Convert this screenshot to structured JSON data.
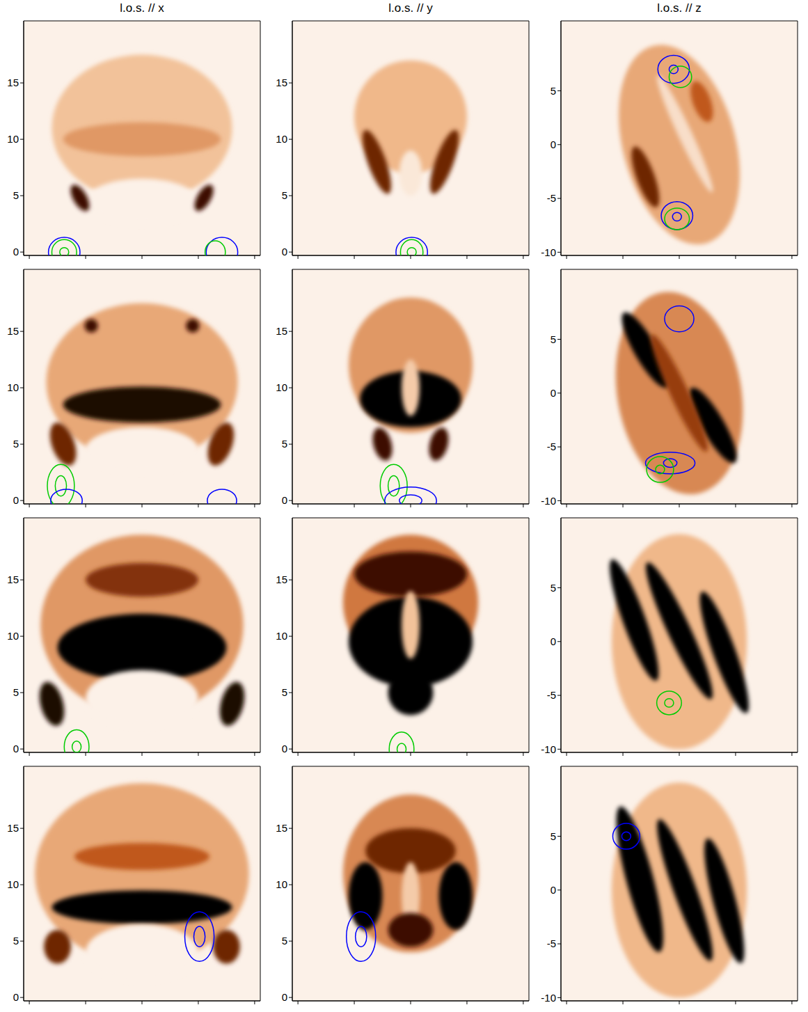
{
  "chart_data": [
    {
      "type": "image",
      "title": "l.o.s. // x",
      "xlim": [
        -10.5,
        10.5
      ],
      "ylim": [
        -0.3,
        20.5
      ],
      "xticks": [
        -10,
        -5,
        0,
        5,
        10
      ],
      "yticks": [
        0,
        5,
        10,
        15
      ],
      "tick_labels": "y",
      "features": [
        {
          "x": 0,
          "y": 11,
          "rx": 8,
          "ry": 6.5,
          "angle": 0,
          "intensity": 0.25
        },
        {
          "x": 0,
          "y": 10,
          "rx": 7,
          "ry": 1.5,
          "angle": 0,
          "intensity": 0.4
        },
        {
          "x": 0,
          "y": 4.5,
          "rx": 5,
          "ry": 2,
          "angle": 0,
          "intensity": 0
        },
        {
          "x": -5.5,
          "y": 4.8,
          "rx": 0.6,
          "ry": 1.3,
          "angle": 30,
          "intensity": 0.9
        },
        {
          "x": 5.5,
          "y": 4.8,
          "rx": 0.6,
          "ry": 1.3,
          "angle": -30,
          "intensity": 0.9
        }
      ],
      "contours": [
        {
          "x": -6.9,
          "y": 0,
          "rx": 1.4,
          "ry": 1.3,
          "color": "#0000ff"
        },
        {
          "x": -6.9,
          "y": 0,
          "rx": 1.1,
          "ry": 1.1,
          "color": "#00cc00"
        },
        {
          "x": -6.9,
          "y": 0,
          "rx": 0.4,
          "ry": 0.4,
          "color": "#00cc00"
        },
        {
          "x": 7.1,
          "y": 0,
          "rx": 1.4,
          "ry": 1.3,
          "color": "#0000ff"
        },
        {
          "x": 6.5,
          "y": 0,
          "rx": 0.9,
          "ry": 1.0,
          "color": "#00cc00"
        }
      ]
    },
    {
      "type": "image",
      "title": "l.o.s. // y",
      "xlim": [
        -10.5,
        10.5
      ],
      "ylim": [
        -0.3,
        20.5
      ],
      "xticks": [
        -10,
        -5,
        0,
        5,
        10
      ],
      "yticks": [
        0,
        5,
        10,
        15
      ],
      "tick_labels": "y",
      "features": [
        {
          "x": 0,
          "y": 12,
          "rx": 5,
          "ry": 5,
          "angle": 0,
          "intensity": 0.3
        },
        {
          "x": -3,
          "y": 8,
          "rx": 0.8,
          "ry": 3,
          "angle": 20,
          "intensity": 0.8
        },
        {
          "x": 3,
          "y": 8,
          "rx": 0.8,
          "ry": 3,
          "angle": -20,
          "intensity": 0.8
        },
        {
          "x": 0,
          "y": 7,
          "rx": 1,
          "ry": 2,
          "angle": 0,
          "intensity": 0.05
        }
      ],
      "contours": [
        {
          "x": 0.1,
          "y": 0,
          "rx": 1.4,
          "ry": 1.3,
          "color": "#0000ff"
        },
        {
          "x": 0.1,
          "y": 0,
          "rx": 1.0,
          "ry": 1.1,
          "color": "#00cc00"
        },
        {
          "x": 0.1,
          "y": 0,
          "rx": 0.4,
          "ry": 0.4,
          "color": "#00cc00"
        }
      ]
    },
    {
      "type": "image",
      "title": "l.o.s. // z",
      "xlim": [
        -10.5,
        10.5
      ],
      "ylim": [
        -10.3,
        11.5
      ],
      "xticks": [
        -10,
        -5,
        0,
        5,
        10
      ],
      "yticks": [
        -10,
        -5,
        0,
        5
      ],
      "tick_labels": "y",
      "features": [
        {
          "x": 0,
          "y": 0,
          "rx": 5,
          "ry": 9.5,
          "angle": 15,
          "intensity": 0.35
        },
        {
          "x": -3,
          "y": -3,
          "rx": 0.8,
          "ry": 3,
          "angle": 20,
          "intensity": 0.8
        },
        {
          "x": 2,
          "y": 4,
          "rx": 0.8,
          "ry": 2,
          "angle": 20,
          "intensity": 0.6
        },
        {
          "x": 0.5,
          "y": 1,
          "rx": 0.6,
          "ry": 6,
          "angle": 25,
          "intensity": 0.1
        }
      ],
      "contours": [
        {
          "x": -0.5,
          "y": 7,
          "rx": 1.4,
          "ry": 1.3,
          "color": "#0000ff"
        },
        {
          "x": -0.5,
          "y": 7,
          "rx": 0.4,
          "ry": 0.4,
          "color": "#0000ff"
        },
        {
          "x": 0.1,
          "y": 6.3,
          "rx": 1.0,
          "ry": 1.0,
          "color": "#00cc00"
        },
        {
          "x": -0.2,
          "y": -6.6,
          "rx": 1.4,
          "ry": 1.3,
          "color": "#0000ff"
        },
        {
          "x": -0.2,
          "y": -6.9,
          "rx": 1.1,
          "ry": 1.0,
          "color": "#00cc00"
        },
        {
          "x": -0.2,
          "y": -6.7,
          "rx": 0.4,
          "ry": 0.4,
          "color": "#0000ff"
        }
      ]
    },
    {
      "type": "image",
      "xlim": [
        -10.5,
        10.5
      ],
      "ylim": [
        -0.3,
        20.5
      ],
      "xticks": [
        -10,
        -5,
        0,
        5,
        10
      ],
      "yticks": [
        0,
        5,
        10,
        15
      ],
      "tick_labels": "y",
      "features": [
        {
          "x": 0,
          "y": 10.5,
          "rx": 8.5,
          "ry": 7,
          "angle": 0,
          "intensity": 0.35
        },
        {
          "x": 0,
          "y": 8.5,
          "rx": 7,
          "ry": 1.6,
          "angle": 0,
          "intensity": 0.95
        },
        {
          "x": 0,
          "y": 4.5,
          "rx": 5,
          "ry": 2,
          "angle": 0,
          "intensity": 0
        },
        {
          "x": -7,
          "y": 5,
          "rx": 1,
          "ry": 2,
          "angle": 20,
          "intensity": 0.8
        },
        {
          "x": 7,
          "y": 5,
          "rx": 1,
          "ry": 2,
          "angle": -20,
          "intensity": 0.8
        },
        {
          "x": -4.5,
          "y": 15.5,
          "rx": 0.6,
          "ry": 0.6,
          "angle": 0,
          "intensity": 0.9
        },
        {
          "x": 4.5,
          "y": 15.5,
          "rx": 0.6,
          "ry": 0.6,
          "angle": 0,
          "intensity": 0.9
        }
      ],
      "contours": [
        {
          "x": -7.2,
          "y": 1.3,
          "rx": 1.2,
          "ry": 1.9,
          "color": "#00cc00"
        },
        {
          "x": -7.2,
          "y": 1.3,
          "rx": 0.5,
          "ry": 0.9,
          "color": "#00cc00"
        },
        {
          "x": -6.7,
          "y": 0,
          "rx": 1.4,
          "ry": 1.0,
          "color": "#0000ff"
        },
        {
          "x": 7.1,
          "y": 0,
          "rx": 1.3,
          "ry": 1.0,
          "color": "#0000ff"
        }
      ]
    },
    {
      "type": "image",
      "xlim": [
        -10.5,
        10.5
      ],
      "ylim": [
        -0.3,
        20.5
      ],
      "xticks": [
        -10,
        -5,
        0,
        5,
        10
      ],
      "yticks": [
        0,
        5,
        10,
        15
      ],
      "tick_labels": "y",
      "features": [
        {
          "x": 0,
          "y": 12,
          "rx": 5.5,
          "ry": 6,
          "angle": 0,
          "intensity": 0.4
        },
        {
          "x": 0,
          "y": 9,
          "rx": 4.5,
          "ry": 2.5,
          "angle": 0,
          "intensity": 1
        },
        {
          "x": 0,
          "y": 10,
          "rx": 0.8,
          "ry": 2.5,
          "angle": 0,
          "intensity": 0.2
        },
        {
          "x": -2.5,
          "y": 5,
          "rx": 0.8,
          "ry": 1.5,
          "angle": 15,
          "intensity": 0.9
        },
        {
          "x": 2.5,
          "y": 5,
          "rx": 0.8,
          "ry": 1.5,
          "angle": -15,
          "intensity": 0.9
        }
      ],
      "contours": [
        {
          "x": -1.5,
          "y": 1.3,
          "rx": 1.2,
          "ry": 1.9,
          "color": "#00cc00"
        },
        {
          "x": -1.5,
          "y": 1.3,
          "rx": 0.5,
          "ry": 0.9,
          "color": "#00cc00"
        },
        {
          "x": 0,
          "y": 0,
          "rx": 2.3,
          "ry": 1.2,
          "color": "#0000ff"
        },
        {
          "x": 0,
          "y": 0,
          "rx": 1.0,
          "ry": 0.5,
          "color": "#0000ff"
        }
      ]
    },
    {
      "type": "image",
      "xlim": [
        -10.5,
        10.5
      ],
      "ylim": [
        -10.3,
        11.5
      ],
      "xticks": [
        -10,
        -5,
        0,
        5,
        10
      ],
      "yticks": [
        -10,
        -5,
        0,
        5
      ],
      "tick_labels": "y",
      "features": [
        {
          "x": 0,
          "y": 0,
          "rx": 5.5,
          "ry": 9.5,
          "angle": 10,
          "intensity": 0.45
        },
        {
          "x": -3,
          "y": 4,
          "rx": 1,
          "ry": 4,
          "angle": 30,
          "intensity": 1
        },
        {
          "x": 3,
          "y": -3,
          "rx": 1,
          "ry": 4,
          "angle": 30,
          "intensity": 1
        },
        {
          "x": 0,
          "y": 0,
          "rx": 0.8,
          "ry": 6,
          "angle": 25,
          "intensity": 0.7
        }
      ],
      "contours": [
        {
          "x": 0,
          "y": 6.9,
          "rx": 1.3,
          "ry": 1.2,
          "color": "#0000ff"
        },
        {
          "x": -0.8,
          "y": -6.5,
          "rx": 2.2,
          "ry": 1.0,
          "color": "#0000ff"
        },
        {
          "x": -0.8,
          "y": -6.5,
          "rx": 0.6,
          "ry": 0.4,
          "color": "#0000ff"
        },
        {
          "x": -1.7,
          "y": -7.1,
          "rx": 1.2,
          "ry": 1.2,
          "color": "#00cc00"
        },
        {
          "x": -1.7,
          "y": -7.1,
          "rx": 0.4,
          "ry": 0.4,
          "color": "#00cc00"
        }
      ]
    },
    {
      "type": "image",
      "xlim": [
        -10.5,
        10.5
      ],
      "ylim": [
        -0.3,
        20.5
      ],
      "xticks": [
        -10,
        -5,
        0,
        5,
        10
      ],
      "yticks": [
        0,
        5,
        10,
        15
      ],
      "tick_labels": "y",
      "features": [
        {
          "x": 0,
          "y": 11,
          "rx": 9,
          "ry": 8,
          "angle": 0,
          "intensity": 0.4
        },
        {
          "x": 0,
          "y": 9,
          "rx": 7.5,
          "ry": 3,
          "angle": 0,
          "intensity": 1
        },
        {
          "x": 0,
          "y": 15,
          "rx": 5,
          "ry": 1.5,
          "angle": 0,
          "intensity": 0.75
        },
        {
          "x": 0,
          "y": 4.5,
          "rx": 5,
          "ry": 2.5,
          "angle": 0,
          "intensity": 0
        },
        {
          "x": -8,
          "y": 4,
          "rx": 1,
          "ry": 2,
          "angle": 15,
          "intensity": 0.95
        },
        {
          "x": 8,
          "y": 4,
          "rx": 1,
          "ry": 2,
          "angle": -15,
          "intensity": 0.95
        }
      ],
      "contours": [
        {
          "x": -5.8,
          "y": 0.2,
          "rx": 1.1,
          "ry": 1.5,
          "color": "#00cc00"
        },
        {
          "x": -5.8,
          "y": 0.2,
          "rx": 0.4,
          "ry": 0.5,
          "color": "#00cc00"
        }
      ]
    },
    {
      "type": "image",
      "xlim": [
        -10.5,
        10.5
      ],
      "ylim": [
        -0.3,
        20.5
      ],
      "xticks": [
        -10,
        -5,
        0,
        5,
        10
      ],
      "yticks": [
        0,
        5,
        10,
        15
      ],
      "tick_labels": "y",
      "features": [
        {
          "x": 0,
          "y": 13,
          "rx": 6,
          "ry": 6,
          "angle": 0,
          "intensity": 0.5
        },
        {
          "x": 0,
          "y": 9.5,
          "rx": 5.5,
          "ry": 4,
          "angle": 0,
          "intensity": 1
        },
        {
          "x": 0,
          "y": 15.5,
          "rx": 5,
          "ry": 2,
          "angle": 0,
          "intensity": 0.9
        },
        {
          "x": 0,
          "y": 11,
          "rx": 0.8,
          "ry": 3,
          "angle": 0,
          "intensity": 0.25
        },
        {
          "x": 0,
          "y": 5,
          "rx": 2,
          "ry": 2,
          "angle": 0,
          "intensity": 1
        }
      ],
      "contours": [
        {
          "x": -0.8,
          "y": 0,
          "rx": 1.1,
          "ry": 1.5,
          "color": "#00cc00"
        },
        {
          "x": -0.8,
          "y": 0,
          "rx": 0.4,
          "ry": 0.5,
          "color": "#00cc00"
        }
      ]
    },
    {
      "type": "image",
      "xlim": [
        -10.5,
        10.5
      ],
      "ylim": [
        -10.3,
        11.5
      ],
      "xticks": [
        -10,
        -5,
        0,
        5,
        10
      ],
      "yticks": [
        -10,
        -5,
        0,
        5
      ],
      "tick_labels": "y",
      "features": [
        {
          "x": 0,
          "y": 0,
          "rx": 6,
          "ry": 10,
          "angle": 0,
          "intensity": 0.3
        },
        {
          "x": -4,
          "y": 2,
          "rx": 1,
          "ry": 6,
          "angle": 20,
          "intensity": 1
        },
        {
          "x": 0,
          "y": 1,
          "rx": 1,
          "ry": 7,
          "angle": 25,
          "intensity": 1
        },
        {
          "x": 4,
          "y": -1,
          "rx": 1,
          "ry": 6,
          "angle": 20,
          "intensity": 1
        }
      ],
      "contours": [
        {
          "x": -0.9,
          "y": -5.7,
          "rx": 1.1,
          "ry": 1.1,
          "color": "#00cc00"
        },
        {
          "x": -0.9,
          "y": -5.7,
          "rx": 0.4,
          "ry": 0.4,
          "color": "#00cc00"
        }
      ]
    },
    {
      "type": "image",
      "xlim": [
        -10.5,
        10.5
      ],
      "ylim": [
        -0.3,
        20.5
      ],
      "xticks": [
        -10,
        -5,
        0,
        5,
        10
      ],
      "yticks": [
        0,
        5,
        10,
        15
      ],
      "tick_labels": "y",
      "features": [
        {
          "x": 0,
          "y": 11,
          "rx": 9.5,
          "ry": 8,
          "angle": 0,
          "intensity": 0.35
        },
        {
          "x": 0,
          "y": 8,
          "rx": 8,
          "ry": 1.5,
          "angle": 0,
          "intensity": 1
        },
        {
          "x": 0,
          "y": 12.5,
          "rx": 6,
          "ry": 1.2,
          "angle": 0,
          "intensity": 0.6
        },
        {
          "x": 0,
          "y": 4,
          "rx": 5,
          "ry": 2.5,
          "angle": 0,
          "intensity": 0
        },
        {
          "x": -7.5,
          "y": 4.5,
          "rx": 1.2,
          "ry": 1.5,
          "angle": 0,
          "intensity": 0.8
        },
        {
          "x": 7.5,
          "y": 4.5,
          "rx": 1.2,
          "ry": 1.5,
          "angle": 0,
          "intensity": 0.8
        }
      ],
      "contours": [
        {
          "x": 5.1,
          "y": 5.4,
          "rx": 1.3,
          "ry": 2.2,
          "color": "#0000ff"
        },
        {
          "x": 5.1,
          "y": 5.4,
          "rx": 0.5,
          "ry": 0.9,
          "color": "#0000ff"
        }
      ]
    },
    {
      "type": "image",
      "xlim": [
        -10.5,
        10.5
      ],
      "ylim": [
        -0.3,
        20.5
      ],
      "xticks": [
        -10,
        -5,
        0,
        5,
        10
      ],
      "yticks": [
        0,
        5,
        10,
        15
      ],
      "tick_labels": "y",
      "features": [
        {
          "x": 0,
          "y": 11,
          "rx": 6,
          "ry": 7,
          "angle": 0,
          "intensity": 0.45
        },
        {
          "x": -4,
          "y": 9,
          "rx": 1.5,
          "ry": 3,
          "angle": 0,
          "intensity": 1
        },
        {
          "x": 4,
          "y": 9,
          "rx": 1.5,
          "ry": 3,
          "angle": 0,
          "intensity": 1
        },
        {
          "x": 0,
          "y": 13,
          "rx": 4,
          "ry": 2,
          "angle": 0,
          "intensity": 0.8
        },
        {
          "x": 0,
          "y": 9,
          "rx": 0.8,
          "ry": 3,
          "angle": 0,
          "intensity": 0.2
        },
        {
          "x": 0,
          "y": 6,
          "rx": 2,
          "ry": 1.5,
          "angle": 0,
          "intensity": 0.9
        }
      ],
      "contours": [
        {
          "x": -4.4,
          "y": 5.4,
          "rx": 1.3,
          "ry": 2.2,
          "color": "#0000ff"
        },
        {
          "x": -4.4,
          "y": 5.4,
          "rx": 0.5,
          "ry": 0.9,
          "color": "#0000ff"
        }
      ]
    },
    {
      "type": "image",
      "xlim": [
        -10.5,
        10.5
      ],
      "ylim": [
        -10.3,
        11.5
      ],
      "xticks": [
        -10,
        -5,
        0,
        5,
        10
      ],
      "yticks": [
        -10,
        -5,
        0,
        5
      ],
      "tick_labels": "y",
      "features": [
        {
          "x": 0,
          "y": 0,
          "rx": 6,
          "ry": 10,
          "angle": 0,
          "intensity": 0.3
        },
        {
          "x": -3.5,
          "y": 1,
          "rx": 1.2,
          "ry": 7,
          "angle": 15,
          "intensity": 1
        },
        {
          "x": 0.5,
          "y": 0,
          "rx": 1,
          "ry": 7,
          "angle": 20,
          "intensity": 1
        },
        {
          "x": 4,
          "y": -1,
          "rx": 1,
          "ry": 6,
          "angle": 15,
          "intensity": 1
        }
      ],
      "contours": [
        {
          "x": -4.7,
          "y": 5,
          "rx": 1.2,
          "ry": 1.2,
          "color": "#0000ff"
        },
        {
          "x": -4.7,
          "y": 5,
          "rx": 0.4,
          "ry": 0.4,
          "color": "#0000ff"
        }
      ]
    }
  ]
}
